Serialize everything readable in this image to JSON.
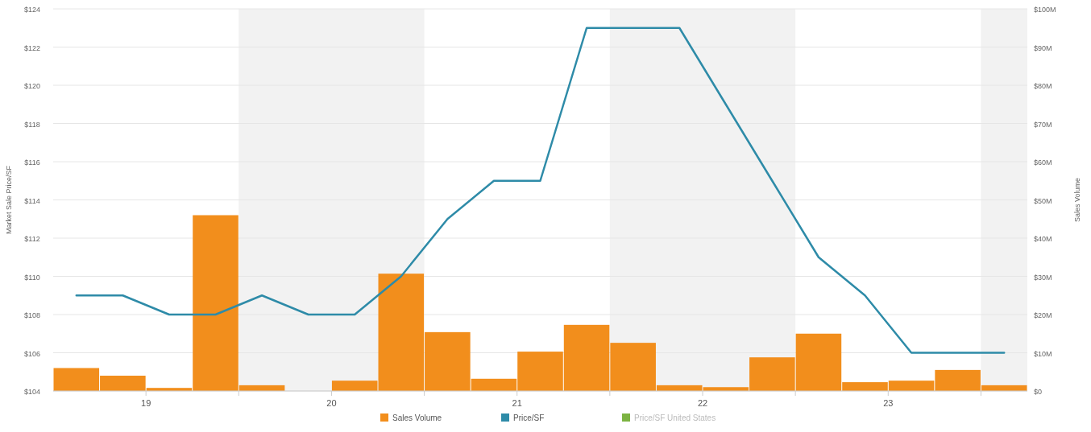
{
  "chart_data": {
    "type": "line",
    "x": [
      18.625,
      18.875,
      19.125,
      19.375,
      19.625,
      19.875,
      20.125,
      20.375,
      20.625,
      20.875,
      21.125,
      21.375,
      21.625,
      21.875,
      22.125,
      22.375,
      22.625,
      22.875,
      23.125,
      23.375,
      23.625
    ],
    "xlim": [
      18.5,
      23.75
    ],
    "xticks": [
      19,
      {
        "value": 19.5,
        "label": null
      },
      20,
      {
        "value": 20.5,
        "label": null
      },
      21,
      {
        "value": 21.5,
        "label": null
      },
      22,
      {
        "value": 22.5,
        "label": null
      },
      23,
      {
        "value": 23.5,
        "label": null
      }
    ],
    "ylim": [
      104,
      124
    ],
    "yticks": [
      {
        "value": 104,
        "label": "$104"
      },
      {
        "value": 106,
        "label": "$106"
      },
      {
        "value": 108,
        "label": "$108"
      },
      {
        "value": 110,
        "label": "$110"
      },
      {
        "value": 112,
        "label": "$112"
      },
      {
        "value": 114,
        "label": "$114"
      },
      {
        "value": 116,
        "label": "$116"
      },
      {
        "value": 118,
        "label": "$118"
      },
      {
        "value": 120,
        "label": "$120"
      },
      {
        "value": 122,
        "label": "$122"
      },
      {
        "value": 124,
        "label": "$124"
      }
    ],
    "y2lim": [
      0,
      100
    ],
    "y2ticks": [
      {
        "value": 0,
        "label": "$0"
      },
      {
        "value": 10,
        "label": "$10M"
      },
      {
        "value": 20,
        "label": "$20M"
      },
      {
        "value": 30,
        "label": "$30M"
      },
      {
        "value": 40,
        "label": "$40M"
      },
      {
        "value": 50,
        "label": "$50M"
      },
      {
        "value": 60,
        "label": "$60M"
      },
      {
        "value": 70,
        "label": "$70M"
      },
      {
        "value": 80,
        "label": "$80M"
      },
      {
        "value": 90,
        "label": "$90M"
      },
      {
        "value": 100,
        "label": "$100M"
      }
    ],
    "ylabel": "Market Sale Price/SF",
    "y2label": "Sales Volume",
    "grid": "y",
    "legend": "bottom",
    "bands": [
      {
        "axis": "x",
        "from": 19.5,
        "to": 20.5,
        "color": "#f2f2f2"
      },
      {
        "axis": "x",
        "from": 21.5,
        "to": 22.5,
        "color": "#f2f2f2"
      },
      {
        "axis": "x",
        "from": 23.5,
        "to": 23.75,
        "color": "#f2f2f2"
      }
    ],
    "series": [
      {
        "name": "Sales Volume",
        "type": "bar",
        "axis": "y2",
        "color": "#f28e1c",
        "values": [
          6,
          4,
          0.8,
          46,
          1.5,
          0,
          2.7,
          30.7,
          15.4,
          3.2,
          10.3,
          17.3,
          12.6,
          1.5,
          1,
          8.8,
          15,
          2.3,
          2.7,
          5.5,
          1.5
        ]
      },
      {
        "name": "Price/SF",
        "axis": "y",
        "color": "#2e8ba8",
        "values": [
          109,
          109,
          108,
          108,
          109,
          108,
          108,
          110,
          113,
          115,
          115,
          123,
          123,
          123,
          119,
          115,
          111,
          109,
          106,
          106,
          106
        ]
      },
      {
        "name": "Price/SF United States",
        "axis": "y",
        "color": "#7cb342",
        "values": [
          null,
          null,
          null,
          null,
          null,
          null,
          null,
          null,
          null,
          null,
          null,
          null,
          null,
          null,
          null,
          null,
          null,
          null,
          null,
          null,
          null
        ]
      }
    ]
  }
}
